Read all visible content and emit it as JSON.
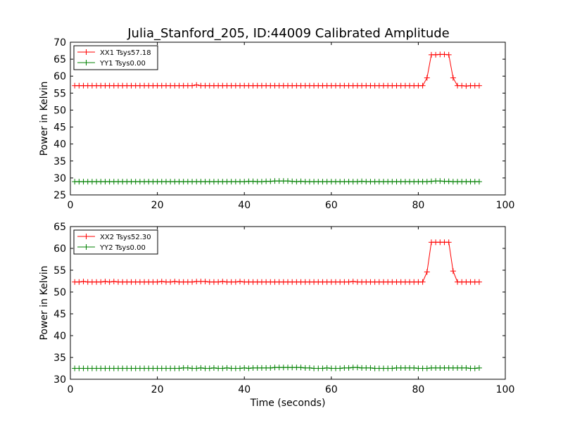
{
  "figure": {
    "title": "Julia_Stanford_205, ID:44009 Calibrated Amplitude"
  },
  "chart_data": [
    {
      "type": "line",
      "title": "Julia_Stanford_205, ID:44009 Calibrated Amplitude",
      "xlabel": "",
      "ylabel": "Power in Kelvin",
      "xlim": [
        0,
        100
      ],
      "ylim": [
        25,
        70
      ],
      "xticks": [
        "0",
        "20",
        "40",
        "60",
        "80",
        "100"
      ],
      "yticks": [
        "25",
        "30",
        "35",
        "40",
        "45",
        "50",
        "55",
        "60",
        "65",
        "70"
      ],
      "legend_position": "top-left",
      "grid": false,
      "series": [
        {
          "name": "XX1 Tsys57.18",
          "color": "#ff0000",
          "x": [
            1,
            2,
            3,
            4,
            5,
            6,
            7,
            8,
            9,
            10,
            11,
            12,
            13,
            14,
            15,
            16,
            17,
            18,
            19,
            20,
            21,
            22,
            23,
            24,
            25,
            26,
            27,
            28,
            29,
            30,
            31,
            32,
            33,
            34,
            35,
            36,
            37,
            38,
            39,
            40,
            41,
            42,
            43,
            44,
            45,
            46,
            47,
            48,
            49,
            50,
            51,
            52,
            53,
            54,
            55,
            56,
            57,
            58,
            59,
            60,
            61,
            62,
            63,
            64,
            65,
            66,
            67,
            68,
            69,
            70,
            71,
            72,
            73,
            74,
            75,
            76,
            77,
            78,
            79,
            80,
            81,
            82,
            83,
            84,
            85,
            86,
            87,
            88,
            89,
            90,
            91,
            92,
            93,
            94
          ],
          "y": [
            57.2,
            57.2,
            57.2,
            57.2,
            57.2,
            57.2,
            57.2,
            57.2,
            57.2,
            57.2,
            57.2,
            57.2,
            57.2,
            57.2,
            57.2,
            57.2,
            57.2,
            57.2,
            57.2,
            57.2,
            57.2,
            57.2,
            57.2,
            57.2,
            57.2,
            57.2,
            57.2,
            57.2,
            57.4,
            57.2,
            57.2,
            57.2,
            57.2,
            57.2,
            57.2,
            57.2,
            57.2,
            57.2,
            57.2,
            57.2,
            57.2,
            57.2,
            57.2,
            57.2,
            57.2,
            57.2,
            57.2,
            57.2,
            57.2,
            57.2,
            57.2,
            57.2,
            57.2,
            57.2,
            57.2,
            57.2,
            57.2,
            57.2,
            57.2,
            57.2,
            57.2,
            57.2,
            57.2,
            57.2,
            57.2,
            57.2,
            57.2,
            57.2,
            57.2,
            57.2,
            57.2,
            57.2,
            57.2,
            57.2,
            57.2,
            57.2,
            57.2,
            57.2,
            57.2,
            57.2,
            57.2,
            59.5,
            66.3,
            66.3,
            66.4,
            66.4,
            66.3,
            59.5,
            57.2,
            57.2,
            57.1,
            57.2,
            57.2,
            57.2
          ]
        },
        {
          "name": "YY1 Tsys0.00",
          "color": "#008000",
          "x": [
            1,
            2,
            3,
            4,
            5,
            6,
            7,
            8,
            9,
            10,
            11,
            12,
            13,
            14,
            15,
            16,
            17,
            18,
            19,
            20,
            21,
            22,
            23,
            24,
            25,
            26,
            27,
            28,
            29,
            30,
            31,
            32,
            33,
            34,
            35,
            36,
            37,
            38,
            39,
            40,
            41,
            42,
            43,
            44,
            45,
            46,
            47,
            48,
            49,
            50,
            51,
            52,
            53,
            54,
            55,
            56,
            57,
            58,
            59,
            60,
            61,
            62,
            63,
            64,
            65,
            66,
            67,
            68,
            69,
            70,
            71,
            72,
            73,
            74,
            75,
            76,
            77,
            78,
            79,
            80,
            81,
            82,
            83,
            84,
            85,
            86,
            87,
            88,
            89,
            90,
            91,
            92,
            93,
            94
          ],
          "y": [
            28.9,
            28.9,
            28.9,
            28.9,
            28.9,
            28.9,
            28.9,
            28.9,
            28.9,
            28.9,
            28.9,
            28.9,
            28.9,
            28.9,
            28.9,
            28.9,
            28.9,
            28.9,
            28.9,
            28.9,
            28.9,
            28.9,
            28.9,
            28.9,
            28.9,
            28.9,
            28.9,
            28.9,
            28.9,
            28.9,
            28.9,
            28.9,
            28.9,
            28.9,
            28.9,
            28.9,
            28.9,
            28.9,
            28.9,
            28.9,
            29.0,
            29.0,
            28.9,
            28.9,
            29.0,
            29.0,
            29.1,
            29.1,
            29.1,
            29.1,
            29.0,
            28.9,
            29.0,
            28.9,
            28.9,
            28.9,
            28.9,
            28.9,
            28.9,
            28.9,
            28.9,
            28.9,
            28.9,
            28.9,
            28.9,
            28.9,
            29.0,
            28.9,
            28.9,
            28.9,
            28.9,
            28.9,
            28.9,
            28.9,
            28.9,
            28.9,
            28.9,
            28.9,
            28.9,
            28.9,
            28.9,
            28.9,
            29.0,
            29.1,
            29.1,
            29.0,
            29.0,
            28.9,
            28.9,
            28.9,
            28.9,
            28.9,
            28.9,
            28.9
          ]
        }
      ]
    },
    {
      "type": "line",
      "title": "",
      "xlabel": "Time (seconds)",
      "ylabel": "Power in Kelvin",
      "xlim": [
        0,
        100
      ],
      "ylim": [
        30,
        65
      ],
      "xticks": [
        "0",
        "20",
        "40",
        "60",
        "80",
        "100"
      ],
      "yticks": [
        "30",
        "35",
        "40",
        "45",
        "50",
        "55",
        "60",
        "65"
      ],
      "legend_position": "top-left",
      "grid": false,
      "series": [
        {
          "name": "XX2 Tsys52.30",
          "color": "#ff0000",
          "x": [
            1,
            2,
            3,
            4,
            5,
            6,
            7,
            8,
            9,
            10,
            11,
            12,
            13,
            14,
            15,
            16,
            17,
            18,
            19,
            20,
            21,
            22,
            23,
            24,
            25,
            26,
            27,
            28,
            29,
            30,
            31,
            32,
            33,
            34,
            35,
            36,
            37,
            38,
            39,
            40,
            41,
            42,
            43,
            44,
            45,
            46,
            47,
            48,
            49,
            50,
            51,
            52,
            53,
            54,
            55,
            56,
            57,
            58,
            59,
            60,
            61,
            62,
            63,
            64,
            65,
            66,
            67,
            68,
            69,
            70,
            71,
            72,
            73,
            74,
            75,
            76,
            77,
            78,
            79,
            80,
            81,
            82,
            83,
            84,
            85,
            86,
            87,
            88,
            89,
            90,
            91,
            92,
            93,
            94
          ],
          "y": [
            52.3,
            52.3,
            52.4,
            52.3,
            52.3,
            52.3,
            52.3,
            52.4,
            52.3,
            52.4,
            52.3,
            52.3,
            52.3,
            52.3,
            52.3,
            52.3,
            52.3,
            52.3,
            52.3,
            52.3,
            52.4,
            52.3,
            52.3,
            52.4,
            52.3,
            52.3,
            52.3,
            52.3,
            52.4,
            52.4,
            52.4,
            52.3,
            52.3,
            52.3,
            52.4,
            52.3,
            52.3,
            52.3,
            52.4,
            52.3,
            52.3,
            52.3,
            52.3,
            52.3,
            52.3,
            52.3,
            52.3,
            52.3,
            52.3,
            52.3,
            52.3,
            52.3,
            52.3,
            52.3,
            52.3,
            52.3,
            52.3,
            52.3,
            52.3,
            52.3,
            52.3,
            52.3,
            52.3,
            52.3,
            52.4,
            52.3,
            52.3,
            52.3,
            52.3,
            52.3,
            52.3,
            52.3,
            52.3,
            52.3,
            52.3,
            52.3,
            52.3,
            52.3,
            52.3,
            52.3,
            52.3,
            54.6,
            61.4,
            61.4,
            61.4,
            61.4,
            61.4,
            54.8,
            52.3,
            52.3,
            52.3,
            52.3,
            52.3,
            52.3
          ]
        },
        {
          "name": "YY2 Tsys0.00",
          "color": "#008000",
          "x": [
            1,
            2,
            3,
            4,
            5,
            6,
            7,
            8,
            9,
            10,
            11,
            12,
            13,
            14,
            15,
            16,
            17,
            18,
            19,
            20,
            21,
            22,
            23,
            24,
            25,
            26,
            27,
            28,
            29,
            30,
            31,
            32,
            33,
            34,
            35,
            36,
            37,
            38,
            39,
            40,
            41,
            42,
            43,
            44,
            45,
            46,
            47,
            48,
            49,
            50,
            51,
            52,
            53,
            54,
            55,
            56,
            57,
            58,
            59,
            60,
            61,
            62,
            63,
            64,
            65,
            66,
            67,
            68,
            69,
            70,
            71,
            72,
            73,
            74,
            75,
            76,
            77,
            78,
            79,
            80,
            81,
            82,
            83,
            84,
            85,
            86,
            87,
            88,
            89,
            90,
            91,
            92,
            93,
            94
          ],
          "y": [
            32.5,
            32.5,
            32.5,
            32.5,
            32.5,
            32.5,
            32.5,
            32.5,
            32.5,
            32.5,
            32.5,
            32.5,
            32.5,
            32.5,
            32.5,
            32.5,
            32.5,
            32.5,
            32.5,
            32.5,
            32.5,
            32.5,
            32.5,
            32.5,
            32.5,
            32.6,
            32.6,
            32.5,
            32.5,
            32.6,
            32.5,
            32.5,
            32.6,
            32.5,
            32.5,
            32.6,
            32.5,
            32.5,
            32.5,
            32.6,
            32.5,
            32.6,
            32.6,
            32.6,
            32.6,
            32.6,
            32.7,
            32.7,
            32.7,
            32.7,
            32.7,
            32.7,
            32.7,
            32.6,
            32.6,
            32.5,
            32.5,
            32.5,
            32.6,
            32.5,
            32.5,
            32.5,
            32.6,
            32.6,
            32.7,
            32.7,
            32.6,
            32.6,
            32.6,
            32.5,
            32.5,
            32.5,
            32.5,
            32.5,
            32.6,
            32.6,
            32.6,
            32.6,
            32.6,
            32.5,
            32.5,
            32.5,
            32.6,
            32.6,
            32.6,
            32.6,
            32.6,
            32.6,
            32.6,
            32.6,
            32.6,
            32.5,
            32.5,
            32.6
          ]
        }
      ]
    }
  ]
}
